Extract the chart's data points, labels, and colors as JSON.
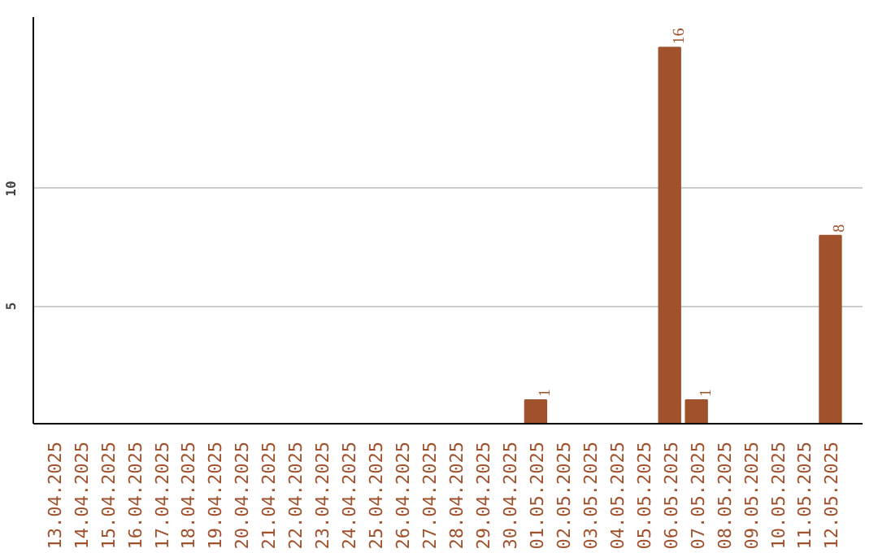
{
  "chart_data": {
    "type": "bar",
    "categories": [
      "13.04.2025",
      "14.04.2025",
      "15.04.2025",
      "16.04.2025",
      "17.04.2025",
      "18.04.2025",
      "19.04.2025",
      "20.04.2025",
      "21.04.2025",
      "22.04.2025",
      "23.04.2025",
      "24.04.2025",
      "25.04.2025",
      "26.04.2025",
      "27.04.2025",
      "28.04.2025",
      "29.04.2025",
      "30.04.2025",
      "01.05.2025",
      "02.05.2025",
      "03.05.2025",
      "04.05.2025",
      "05.05.2025",
      "06.05.2025",
      "07.05.2025",
      "08.05.2025",
      "09.05.2025",
      "10.05.2025",
      "11.05.2025",
      "12.05.2025"
    ],
    "values": [
      0,
      0,
      0,
      0,
      0,
      0,
      0,
      0,
      0,
      0,
      0,
      0,
      0,
      0,
      0,
      0,
      0,
      0,
      1,
      0,
      0,
      0,
      0,
      16,
      1,
      0,
      0,
      0,
      0,
      8
    ],
    "value_labels": [
      null,
      null,
      null,
      null,
      null,
      null,
      null,
      null,
      null,
      null,
      null,
      null,
      null,
      null,
      null,
      null,
      null,
      null,
      "1",
      null,
      null,
      null,
      null,
      "16",
      "1",
      null,
      null,
      null,
      null,
      "8"
    ],
    "color": "#a0522d",
    "ylim": [
      0,
      17.3
    ],
    "yticks": [
      5,
      10
    ],
    "grid": "y"
  }
}
